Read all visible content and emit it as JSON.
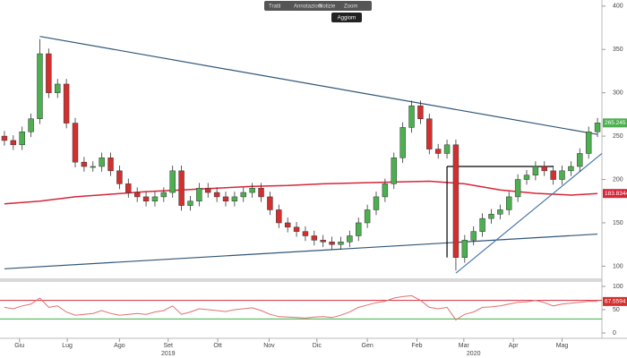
{
  "chart_data": {
    "type": "candlestick",
    "toolbar": [
      "Tratti",
      "Annotazioni",
      "Notizie",
      "Zoom"
    ],
    "toolbar_button": "Aggiorn",
    "up_color": "#4caf50",
    "down_color": "#d32f2f",
    "candles": [
      [
        250,
        256,
        239,
        245
      ],
      [
        245,
        251,
        234,
        240
      ],
      [
        240,
        261,
        234,
        255
      ],
      [
        255,
        276,
        249,
        270
      ],
      [
        270,
        362,
        264,
        345
      ],
      [
        345,
        351,
        294,
        300
      ],
      [
        300,
        316,
        294,
        310
      ],
      [
        310,
        316,
        259,
        265
      ],
      [
        265,
        271,
        214,
        220
      ],
      [
        220,
        226,
        209,
        215
      ],
      [
        215,
        221,
        209,
        215
      ],
      [
        215,
        231,
        209,
        225
      ],
      [
        225,
        231,
        204,
        210
      ],
      [
        210,
        216,
        189,
        195
      ],
      [
        195,
        201,
        179,
        185
      ],
      [
        185,
        191,
        174,
        180
      ],
      [
        180,
        186,
        169,
        175
      ],
      [
        175,
        186,
        169,
        180
      ],
      [
        180,
        191,
        174,
        185
      ],
      [
        185,
        216,
        179,
        210
      ],
      [
        210,
        216,
        164,
        170
      ],
      [
        170,
        181,
        164,
        175
      ],
      [
        175,
        196,
        169,
        190
      ],
      [
        190,
        196,
        179,
        185
      ],
      [
        185,
        191,
        174,
        180
      ],
      [
        180,
        186,
        169,
        175
      ],
      [
        175,
        186,
        169,
        180
      ],
      [
        180,
        191,
        174,
        185
      ],
      [
        185,
        196,
        179,
        190
      ],
      [
        190,
        196,
        174,
        180
      ],
      [
        180,
        186,
        159,
        165
      ],
      [
        165,
        171,
        144,
        150
      ],
      [
        150,
        156,
        139,
        145
      ],
      [
        145,
        151,
        134,
        140
      ],
      [
        140,
        146,
        129,
        135
      ],
      [
        135,
        141,
        124,
        130
      ],
      [
        130,
        136,
        122,
        128
      ],
      [
        128,
        134,
        119,
        125
      ],
      [
        125,
        134,
        119,
        128
      ],
      [
        128,
        141,
        122,
        135
      ],
      [
        135,
        156,
        129,
        150
      ],
      [
        150,
        171,
        144,
        165
      ],
      [
        165,
        186,
        159,
        180
      ],
      [
        180,
        201,
        174,
        195
      ],
      [
        195,
        231,
        189,
        225
      ],
      [
        225,
        266,
        219,
        260
      ],
      [
        260,
        291,
        254,
        285
      ],
      [
        285,
        291,
        264,
        270
      ],
      [
        270,
        276,
        229,
        235
      ],
      [
        235,
        241,
        224,
        230
      ],
      [
        230,
        246,
        224,
        240
      ],
      [
        240,
        246,
        95,
        110
      ],
      [
        110,
        136,
        104,
        130
      ],
      [
        130,
        146,
        124,
        140
      ],
      [
        140,
        161,
        134,
        155
      ],
      [
        155,
        166,
        149,
        160
      ],
      [
        160,
        171,
        154,
        165
      ],
      [
        165,
        186,
        159,
        180
      ],
      [
        180,
        206,
        174,
        200
      ],
      [
        200,
        211,
        194,
        205
      ],
      [
        205,
        221,
        199,
        215
      ],
      [
        215,
        221,
        204,
        210
      ],
      [
        210,
        216,
        194,
        200
      ],
      [
        200,
        216,
        194,
        210
      ],
      [
        210,
        221,
        204,
        215
      ],
      [
        215,
        236,
        209,
        230
      ],
      [
        230,
        261,
        224,
        255
      ],
      [
        255,
        271,
        249,
        265.245
      ]
    ],
    "ma": {
      "color": "#d6263a",
      "x": [
        0,
        4,
        8,
        12,
        16,
        20,
        24,
        28,
        32,
        36,
        40,
        44,
        48,
        52,
        56,
        60,
        64,
        67
      ],
      "values": [
        172,
        175,
        180,
        183,
        186,
        188,
        190,
        192,
        193,
        195,
        196,
        197,
        198,
        195,
        188,
        184,
        182,
        183.8344
      ]
    },
    "trendlines": [
      {
        "color": "#2f5678",
        "x": [
          4,
          67
        ],
        "values": [
          365,
          252
        ]
      },
      {
        "color": "#2f5678",
        "x": [
          0,
          67
        ],
        "values": [
          97,
          137
        ]
      },
      {
        "color": "#000000",
        "x": [
          50,
          62
        ],
        "values": [
          215,
          215
        ]
      },
      {
        "color": "#000000",
        "x": [
          50,
          50
        ],
        "values": [
          215,
          110
        ]
      },
      {
        "color": "#4a78a8",
        "x": [
          51,
          67.5
        ],
        "values": [
          92,
          230
        ]
      }
    ],
    "ylim": [
      87,
      407
    ],
    "yticks": [
      100,
      150,
      200,
      250,
      300,
      350,
      400
    ],
    "xlim": [
      -0.5,
      67.5
    ],
    "xticks": [
      {
        "value": 1.7,
        "label": "Giu"
      },
      {
        "value": 7.1,
        "label": "Lug"
      },
      {
        "value": 13,
        "label": "Ago"
      },
      {
        "value": 18.5,
        "label": "Set"
      },
      {
        "value": 24.1,
        "label": "Ott"
      },
      {
        "value": 29.9,
        "label": "Nov"
      },
      {
        "value": 35.3,
        "label": "Dic"
      },
      {
        "value": 41,
        "label": "Gen"
      },
      {
        "value": 46.6,
        "label": "Feb"
      },
      {
        "value": 51.9,
        "label": "Mar"
      },
      {
        "value": 57.5,
        "label": "Apr"
      },
      {
        "value": 63,
        "label": "Mag"
      }
    ],
    "years": [
      {
        "value": 18.5,
        "label": "2019"
      },
      {
        "value": 53,
        "label": "2020"
      }
    ],
    "rsi": {
      "color": "#e07070",
      "values": [
        55,
        52,
        58,
        62,
        75,
        55,
        58,
        45,
        38,
        40,
        42,
        48,
        42,
        38,
        40,
        42,
        40,
        45,
        48,
        58,
        40,
        45,
        52,
        50,
        48,
        46,
        50,
        52,
        54,
        48,
        40,
        35,
        34,
        33,
        32,
        34,
        35,
        33,
        38,
        45,
        55,
        60,
        65,
        68,
        75,
        78,
        80,
        70,
        55,
        52,
        55,
        28,
        40,
        45,
        55,
        56,
        58,
        62,
        66,
        67,
        70,
        65,
        58,
        62,
        64,
        66,
        68,
        67.5594
      ],
      "ylim": [
        0,
        100
      ],
      "yticks": [
        0,
        50,
        100
      ],
      "levels": [
        {
          "value": 70,
          "color": "#d6263a"
        },
        {
          "value": 30,
          "color": "#3cb043"
        }
      ]
    }
  }
}
